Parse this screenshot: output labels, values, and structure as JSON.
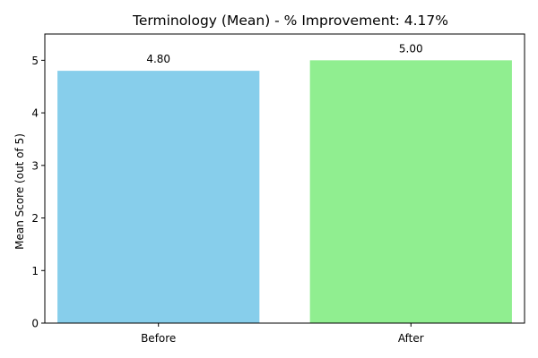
{
  "chart_data": {
    "type": "bar",
    "title": "Terminology (Mean) - % Improvement: 4.17%",
    "xlabel": "",
    "ylabel": "Mean Score (out of 5)",
    "categories": [
      "Before",
      "After"
    ],
    "values": [
      4.8,
      5.0
    ],
    "value_labels": [
      "4.80",
      "5.00"
    ],
    "colors": [
      "#87ceeb",
      "#90ee90"
    ],
    "ylim": [
      0,
      5.5
    ],
    "yticks": [
      0,
      1,
      2,
      3,
      4,
      5
    ],
    "ytick_labels": [
      "0",
      "1",
      "2",
      "3",
      "4",
      "5"
    ],
    "grid": false,
    "legend": "none"
  }
}
